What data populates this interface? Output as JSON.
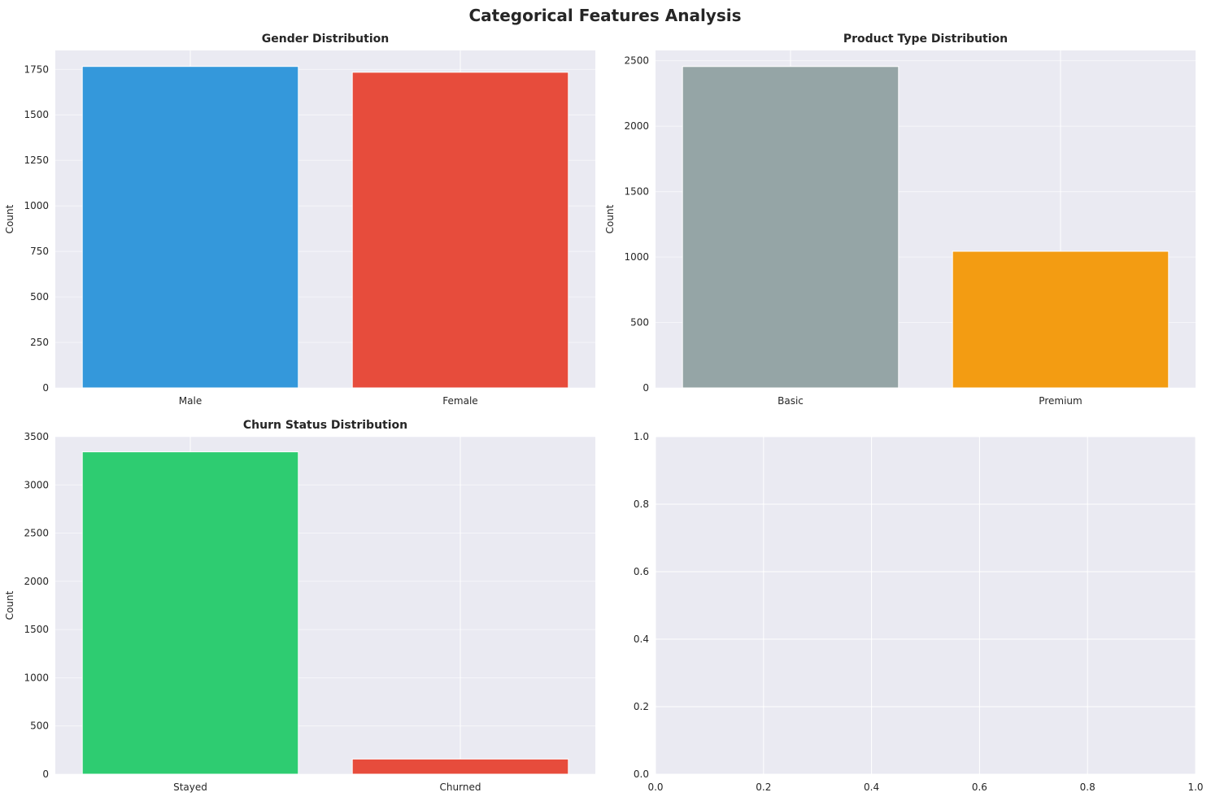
{
  "figure": {
    "suptitle": "Categorical Features Analysis"
  },
  "chart_data": [
    {
      "type": "bar",
      "title": "Gender Distribution",
      "xlabel": "",
      "ylabel": "Count",
      "categories": [
        "Male",
        "Female"
      ],
      "values": [
        1766,
        1734
      ],
      "colors": [
        "#3498db",
        "#e74c3c"
      ],
      "ylim": [
        0,
        1854
      ],
      "yticks": [
        0,
        250,
        500,
        750,
        1000,
        1250,
        1500,
        1750
      ],
      "grid": true
    },
    {
      "type": "bar",
      "title": "Product Type Distribution",
      "xlabel": "",
      "ylabel": "Count",
      "categories": [
        "Basic",
        "Premium"
      ],
      "values": [
        2456,
        1044
      ],
      "colors": [
        "#95a5a6",
        "#f39c12"
      ],
      "ylim": [
        0,
        2579
      ],
      "yticks": [
        0,
        500,
        1000,
        1500,
        2000,
        2500
      ],
      "grid": true
    },
    {
      "type": "bar",
      "title": "Churn Status Distribution",
      "xlabel": "",
      "ylabel": "Count",
      "categories": [
        "Stayed",
        "Churned"
      ],
      "values": [
        3343,
        157
      ],
      "colors": [
        "#2ecc71",
        "#e74c3c"
      ],
      "ylim": [
        0,
        3500
      ],
      "yticks": [
        0,
        500,
        1000,
        1500,
        2000,
        2500,
        3000,
        3500
      ],
      "grid": true
    },
    {
      "type": "empty",
      "title": "",
      "xlabel": "",
      "ylabel": "",
      "xlim": [
        0,
        1
      ],
      "ylim": [
        0,
        1
      ],
      "xticks": [
        0.0,
        0.2,
        0.4,
        0.6,
        0.8,
        1.0
      ],
      "yticks": [
        0.0,
        0.2,
        0.4,
        0.6,
        0.8,
        1.0
      ],
      "grid": true
    }
  ],
  "style": {
    "axes_background": "#eaeaf2",
    "grid_color": "#ffffff",
    "text_color": "#262626"
  }
}
